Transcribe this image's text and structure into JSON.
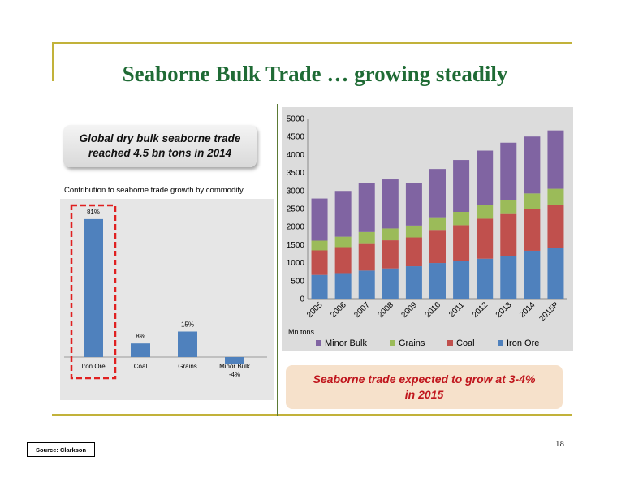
{
  "title": "Seaborne Bulk Trade … growing steadily",
  "callout_text": "Global dry bulk seaborne trade\nreached 4.5 bn tons in 2014",
  "forecast_text": "Seaborne trade expected to grow at 3-4%\nin 2015",
  "page_number": "18",
  "source": "Source: Clarkson",
  "colors": {
    "title": "#1f6b35",
    "bar_blue": "#4f81bd",
    "highlight": "#e02020",
    "minor_bulk": "#8064a2",
    "grains": "#9bbb59",
    "coal": "#c0504d",
    "iron_ore": "#4f81bd"
  },
  "chart_data": [
    {
      "type": "bar",
      "title": "Contribution to seaborne trade growth by commodity",
      "categories": [
        "Iron Ore",
        "Coal",
        "Grains",
        "Minor Bulk"
      ],
      "values": [
        81,
        8,
        15,
        -4
      ],
      "data_labels": [
        "81%",
        "8%",
        "15%",
        "-4%"
      ],
      "highlighted": "Iron Ore",
      "grid": false
    },
    {
      "type": "bar",
      "stacked": true,
      "ylabel": "Mn.tons",
      "categories": [
        "2005",
        "2006",
        "2007",
        "2008",
        "2009",
        "2010",
        "2011",
        "2012",
        "2013",
        "2014",
        "2015P"
      ],
      "ylim": [
        0,
        5000
      ],
      "yticks": [
        0,
        500,
        1000,
        1500,
        2000,
        2500,
        3000,
        3500,
        4000,
        4500,
        5000
      ],
      "legend_position": "bottom",
      "series": [
        {
          "name": "Iron Ore",
          "values": [
            660,
            710,
            780,
            840,
            900,
            990,
            1050,
            1110,
            1190,
            1330,
            1400
          ]
        },
        {
          "name": "Coal",
          "values": [
            680,
            720,
            760,
            780,
            800,
            920,
            990,
            1110,
            1160,
            1160,
            1210
          ]
        },
        {
          "name": "Grains",
          "values": [
            270,
            290,
            310,
            330,
            330,
            350,
            370,
            380,
            390,
            430,
            440
          ]
        },
        {
          "name": "Minor Bulk",
          "values": [
            1170,
            1270,
            1360,
            1360,
            1190,
            1340,
            1440,
            1510,
            1590,
            1580,
            1620
          ]
        }
      ]
    }
  ]
}
